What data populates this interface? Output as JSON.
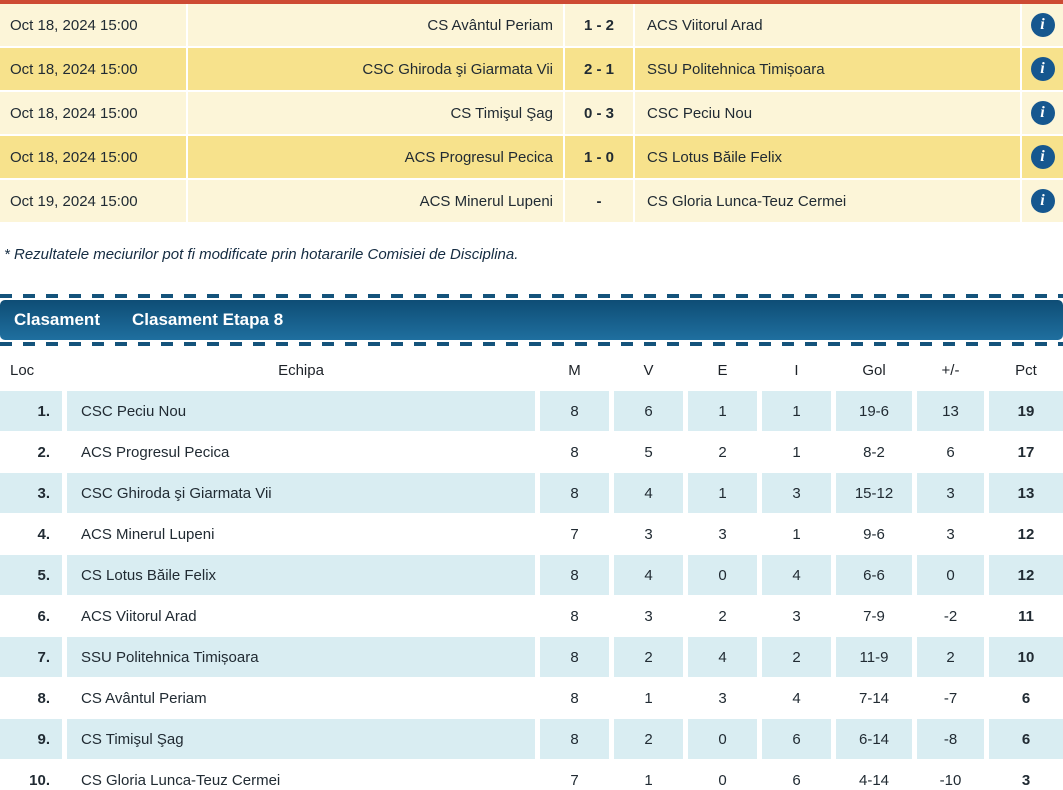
{
  "results": {
    "rows": [
      {
        "date": "Oct 18, 2024 15:00",
        "home": "CS Avântul Periam",
        "score": "1 - 2",
        "away": "ACS Viitorul Arad"
      },
      {
        "date": "Oct 18, 2024 15:00",
        "home": "CSC Ghiroda şi Giarmata Vii",
        "score": "2 - 1",
        "away": "SSU Politehnica Timișoara"
      },
      {
        "date": "Oct 18, 2024 15:00",
        "home": "CS Timişul Şag",
        "score": "0 - 3",
        "away": "CSC Peciu Nou"
      },
      {
        "date": "Oct 18, 2024 15:00",
        "home": "ACS Progresul Pecica",
        "score": "1 - 0",
        "away": "CS Lotus Băile Felix"
      },
      {
        "date": "Oct 19, 2024 15:00",
        "home": "ACS Minerul Lupeni",
        "score": "-",
        "away": "CS Gloria Lunca-Teuz Cermei"
      }
    ],
    "info_icon_glyph": "i",
    "note": "* Rezultatele meciurilor pot fi modificate prin hotararile Comisiei de Disciplina."
  },
  "standings": {
    "header_bar": {
      "title": "Clasament",
      "subtitle": "Clasament Etapa 8"
    },
    "columns": [
      "Loc",
      "Echipa",
      "M",
      "V",
      "E",
      "I",
      "Gol",
      "+/-",
      "Pct"
    ],
    "rows": [
      {
        "loc": "1.",
        "team": "CSC Peciu Nou",
        "m": "8",
        "v": "6",
        "e": "1",
        "i": "1",
        "gol": "19-6",
        "diff": "13",
        "pct": "19"
      },
      {
        "loc": "2.",
        "team": "ACS Progresul Pecica",
        "m": "8",
        "v": "5",
        "e": "2",
        "i": "1",
        "gol": "8-2",
        "diff": "6",
        "pct": "17"
      },
      {
        "loc": "3.",
        "team": "CSC Ghiroda şi Giarmata Vii",
        "m": "8",
        "v": "4",
        "e": "1",
        "i": "3",
        "gol": "15-12",
        "diff": "3",
        "pct": "13"
      },
      {
        "loc": "4.",
        "team": "ACS Minerul Lupeni",
        "m": "7",
        "v": "3",
        "e": "3",
        "i": "1",
        "gol": "9-6",
        "diff": "3",
        "pct": "12"
      },
      {
        "loc": "5.",
        "team": "CS Lotus Băile Felix",
        "m": "8",
        "v": "4",
        "e": "0",
        "i": "4",
        "gol": "6-6",
        "diff": "0",
        "pct": "12"
      },
      {
        "loc": "6.",
        "team": "ACS Viitorul Arad",
        "m": "8",
        "v": "3",
        "e": "2",
        "i": "3",
        "gol": "7-9",
        "diff": "-2",
        "pct": "11"
      },
      {
        "loc": "7.",
        "team": "SSU Politehnica Timișoara",
        "m": "8",
        "v": "2",
        "e": "4",
        "i": "2",
        "gol": "11-9",
        "diff": "2",
        "pct": "10"
      },
      {
        "loc": "8.",
        "team": "CS Avântul Periam",
        "m": "8",
        "v": "1",
        "e": "3",
        "i": "4",
        "gol": "7-14",
        "diff": "-7",
        "pct": "6"
      },
      {
        "loc": "9.",
        "team": "CS Timişul Şag",
        "m": "8",
        "v": "2",
        "e": "0",
        "i": "6",
        "gol": "6-14",
        "diff": "-8",
        "pct": "6"
      },
      {
        "loc": "10.",
        "team": "CS Gloria Lunca-Teuz Cermei",
        "m": "7",
        "v": "1",
        "e": "0",
        "i": "6",
        "gol": "4-14",
        "diff": "-10",
        "pct": "3"
      }
    ]
  },
  "colors": {
    "row_cream": "#fcf5d8",
    "row_yellow": "#f7e28c",
    "row_lightblue": "#d9edf2",
    "bar_top": "#0e4d75",
    "bar_bottom": "#1f6f9f",
    "info_icon": "#16578f",
    "top_strip": "#cd4a33"
  }
}
